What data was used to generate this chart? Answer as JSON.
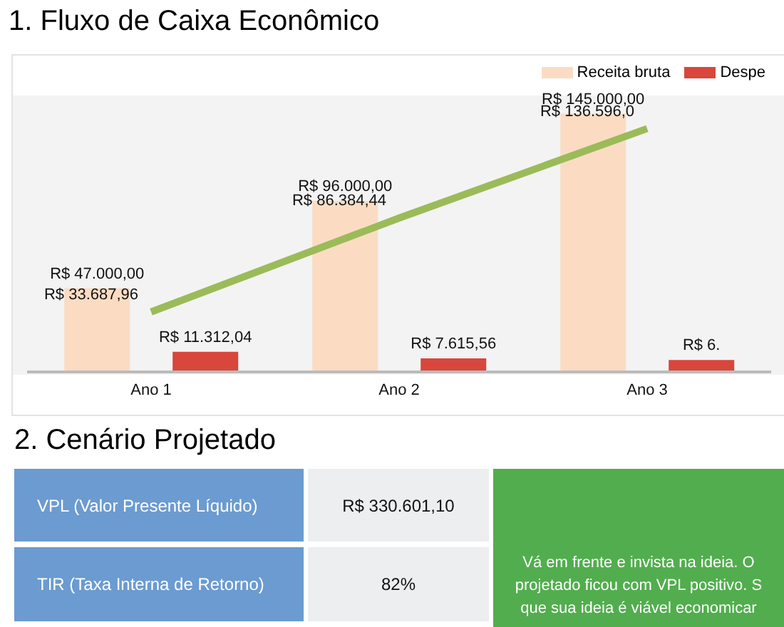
{
  "chart_data": [
    {
      "type": "bar",
      "title": "1. Fluxo de Caixa Econômico",
      "categories": [
        "Ano 1",
        "Ano 2",
        "Ano 3"
      ],
      "legend": "top right",
      "series": [
        {
          "name": "Receita bruta",
          "type": "bar",
          "color": "#fbdcc2",
          "values": [
            47000,
            96000,
            145000
          ],
          "value_labels": [
            "R$ 47.000,00",
            "R$ 96.000,00",
            "R$ 145.000,00"
          ]
        },
        {
          "name": "Despe",
          "type": "bar",
          "color": "#d9463b",
          "values": [
            11312.04,
            7615.56,
            6700
          ],
          "value_labels": [
            "R$ 11.312,04",
            "R$ 7.615,56",
            "R$ 6."
          ]
        },
        {
          "type": "line",
          "color": "#9bbb59",
          "values": [
            33687.96,
            86384.44,
            136596
          ],
          "value_labels": [
            "R$ 33.687,96",
            "R$ 86.384,44",
            "R$ 136.596,0"
          ]
        }
      ]
    },
    {
      "type": "other",
      "title": "2. Cenário Projetado",
      "annotations": [
        "VPL (Valor Presente Líquido)",
        "R$ 330.601,10",
        "TIR (Taxa Interna de Retorno)",
        "82%",
        "Vá em frente e invista na ideia. O",
        "projetado ficou com VPL positivo. S",
        "que sua ideia é viável economicar"
      ]
    }
  ]
}
